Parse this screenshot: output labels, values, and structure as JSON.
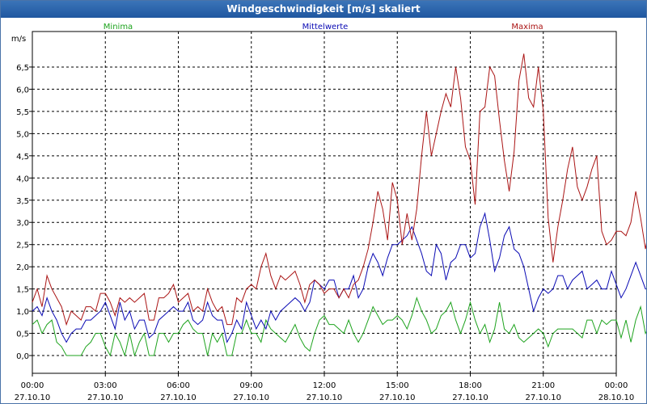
{
  "window": {
    "title": "Windgeschwindigkeit [m/s] skaliert"
  },
  "colors": {
    "minima": "#1ea31e",
    "mittelwerte": "#0a0ab4",
    "maxima": "#aa1414",
    "title_bar": "#1f57a0"
  },
  "chart_data": {
    "type": "line",
    "title": "Windgeschwindigkeit [m/s] skaliert",
    "ylabel": "m/s",
    "xlabel": "",
    "ylim": [
      -0.4,
      7.3
    ],
    "yticks": [
      "0,0",
      "0,5",
      "1,0",
      "1,5",
      "2,0",
      "2,5",
      "3,0",
      "3,5",
      "4,0",
      "4,5",
      "5,0",
      "5,5",
      "6,0",
      "6,5"
    ],
    "xlim": [
      "27.10.10 00:00",
      "28.10.10 00:00"
    ],
    "xticks": [
      {
        "time": "00:00",
        "date": "27.10.10"
      },
      {
        "time": "03:00",
        "date": "27.10.10"
      },
      {
        "time": "06:00",
        "date": "27.10.10"
      },
      {
        "time": "09:00",
        "date": "27.10.10"
      },
      {
        "time": "12:00",
        "date": "27.10.10"
      },
      {
        "time": "15:00",
        "date": "27.10.10"
      },
      {
        "time": "18:00",
        "date": "27.10.10"
      },
      {
        "time": "21:00",
        "date": "27.10.10"
      },
      {
        "time": "00:00",
        "date": "28.10.10"
      }
    ],
    "grid": true,
    "legend_position": "top",
    "series": [
      {
        "name": "Minima",
        "color": "#1ea31e",
        "x_step_hours": 0.2,
        "x_start": "27.10.10 00:00",
        "values": [
          0.7,
          0.8,
          0.5,
          0.7,
          0.8,
          0.3,
          0.2,
          0,
          0,
          0,
          0,
          0.2,
          0.3,
          0.5,
          0.5,
          0.2,
          0,
          0.5,
          0.3,
          0,
          0.5,
          0,
          0.3,
          0.5,
          0,
          0,
          0.5,
          0.5,
          0.3,
          0.5,
          0.5,
          0.7,
          0.8,
          0.6,
          0.5,
          0.5,
          0,
          0.5,
          0.3,
          0.5,
          0,
          0,
          0.5,
          0.5,
          0.8,
          0.5,
          0.5,
          0.3,
          0.8,
          0.6,
          0.5,
          0.4,
          0.3,
          0.5,
          0.7,
          0.4,
          0.2,
          0.1,
          0.5,
          0.8,
          0.9,
          0.7,
          0.7,
          0.6,
          0.5,
          0.8,
          0.5,
          0.3,
          0.5,
          0.8,
          1.1,
          0.9,
          0.7,
          0.8,
          0.8,
          0.9,
          0.8,
          0.6,
          0.9,
          1.3,
          1.0,
          0.8,
          0.5,
          0.6,
          0.9,
          1.0,
          1.2,
          0.8,
          0.5,
          0.8,
          1.2,
          0.8,
          0.5,
          0.7,
          0.3,
          0.6,
          1.2,
          0.6,
          0.5,
          0.7,
          0.4,
          0.3,
          0.4,
          0.5,
          0.6,
          0.5,
          0.2,
          0.5,
          0.6,
          0.6,
          0.6,
          0.6,
          0.5,
          0.4,
          0.8,
          0.8,
          0.5,
          0.8,
          0.7,
          0.8,
          0.8,
          0.4,
          0.8,
          0.3,
          0.8,
          1.1,
          0.5,
          0.7,
          0.6,
          0.6,
          0.6,
          0.5,
          0.5,
          0.5,
          0.5,
          0.8,
          0.9,
          0.6,
          0.5,
          0.1,
          0,
          0.5,
          0.6,
          0.9,
          0.9,
          0.3,
          0.8,
          0.8,
          0.5,
          0.6,
          0.5,
          0.5,
          0.5,
          0.5,
          0.6,
          0.5,
          0.4,
          0.6,
          1.1,
          1.0,
          0.9,
          0.5,
          0.6,
          0.4,
          0.5,
          0.5,
          0.5,
          0.5,
          0.5,
          0.4,
          0.1,
          0.3,
          0.5,
          0.7,
          0.6,
          0.6,
          0.5,
          0.3,
          0.2,
          0,
          0.4,
          0.7
        ]
      },
      {
        "name": "Mittelwerte",
        "color": "#0a0ab4",
        "x_step_hours": 0.2,
        "x_start": "27.10.10 00:00",
        "values": [
          1.0,
          1.1,
          0.9,
          1.3,
          1.0,
          0.8,
          0.5,
          0.3,
          0.5,
          0.6,
          0.6,
          0.8,
          0.8,
          0.9,
          1.0,
          1.2,
          0.9,
          0.6,
          1.2,
          0.8,
          1.0,
          0.6,
          0.8,
          0.8,
          0.4,
          0.5,
          0.8,
          0.9,
          1.0,
          1.1,
          1.0,
          1.0,
          1.2,
          0.8,
          0.7,
          0.8,
          1.2,
          0.9,
          0.8,
          0.8,
          0.3,
          0.5,
          0.8,
          0.6,
          1.2,
          0.9,
          0.6,
          0.8,
          0.6,
          1.0,
          0.8,
          1.0,
          1.1,
          1.2,
          1.3,
          1.2,
          1.0,
          1.2,
          1.7,
          1.6,
          1.5,
          1.7,
          1.7,
          1.3,
          1.5,
          1.5,
          1.8,
          1.3,
          1.5,
          2.0,
          2.3,
          2.1,
          1.8,
          2.2,
          2.5,
          2.5,
          2.6,
          2.7,
          2.9,
          2.6,
          2.3,
          1.9,
          1.8,
          2.5,
          2.3,
          1.7,
          2.1,
          2.2,
          2.5,
          2.5,
          2.2,
          2.3,
          2.9,
          3.2,
          2.6,
          1.9,
          2.2,
          2.7,
          2.9,
          2.4,
          2.3,
          2.0,
          1.5,
          1.0,
          1.3,
          1.5,
          1.4,
          1.5,
          1.8,
          1.8,
          1.5,
          1.7,
          1.8,
          1.9,
          1.5,
          1.6,
          1.7,
          1.5,
          1.5,
          1.9,
          1.6,
          1.3,
          1.5,
          1.8,
          2.1,
          1.8,
          1.5,
          1.5,
          1.5,
          1.9,
          2.0,
          2.4,
          2.0,
          1.5,
          1.3,
          1.1,
          1.0,
          1.5,
          1.7,
          1.7,
          1.5,
          1.5,
          1.9,
          2.3,
          1.8,
          1.5,
          1.5,
          1.1,
          1.2,
          1.0,
          1.1,
          1.2,
          1.2,
          1.0,
          1.2,
          1.1,
          1.3,
          1.8,
          1.5,
          1.7,
          1.2,
          1.2,
          1.3,
          1.6,
          1.8,
          1.9,
          1.8,
          1.2,
          0.8,
          1.1,
          1.1,
          1.2,
          1.3,
          1.2,
          1.3,
          1.5,
          1.0,
          1.1,
          1.2,
          1.3,
          1.3
        ]
      },
      {
        "name": "Maxima",
        "color": "#aa1414",
        "x_step_hours": 0.2,
        "x_start": "27.10.10 00:00",
        "values": [
          1.2,
          1.5,
          1.1,
          1.8,
          1.5,
          1.3,
          1.1,
          0.7,
          1.0,
          0.9,
          0.8,
          1.1,
          1.1,
          1.0,
          1.4,
          1.4,
          1.2,
          0.9,
          1.3,
          1.2,
          1.3,
          1.2,
          1.3,
          1.4,
          0.8,
          0.8,
          1.3,
          1.3,
          1.4,
          1.6,
          1.2,
          1.3,
          1.4,
          1.0,
          1.1,
          1.0,
          1.5,
          1.2,
          1.0,
          1.1,
          0.7,
          0.7,
          1.3,
          1.2,
          1.5,
          1.6,
          1.5,
          2.0,
          2.3,
          1.8,
          1.5,
          1.8,
          1.7,
          1.8,
          1.9,
          1.6,
          1.2,
          1.6,
          1.7,
          1.6,
          1.4,
          1.5,
          1.5,
          1.3,
          1.5,
          1.3,
          1.6,
          1.7,
          2.0,
          2.4,
          3.0,
          3.7,
          3.3,
          2.6,
          3.9,
          3.5,
          2.5,
          3.2,
          2.6,
          3.3,
          4.5,
          5.5,
          4.5,
          5.0,
          5.5,
          5.9,
          5.6,
          6.5,
          5.8,
          4.7,
          4.4,
          3.4,
          5.5,
          5.6,
          6.5,
          6.3,
          5.3,
          4.4,
          3.7,
          4.6,
          6.2,
          6.8,
          5.8,
          5.6,
          6.5,
          5.5,
          3.1,
          2.1,
          2.9,
          3.5,
          4.2,
          4.7,
          3.8,
          3.5,
          3.8,
          4.2,
          4.5,
          2.8,
          2.5,
          2.6,
          2.8,
          2.8,
          2.7,
          3.0,
          3.7,
          3.1,
          2.4,
          3.0,
          4.7,
          4.2,
          3.3,
          2.2,
          2.1,
          3.0,
          4.1,
          4.9,
          3.8,
          3.1,
          4.3,
          5.6,
          6.8,
          4.8,
          4.6,
          5.5,
          5.2,
          3.8,
          2.0,
          2.1,
          2.0,
          3.9,
          4.0,
          2.8,
          2.6,
          3.0,
          3.1,
          5.4,
          4.3,
          2.9,
          2.5,
          2.1,
          2.6,
          3.1,
          3.9,
          3.4,
          3.0,
          2.5,
          2.5,
          2.0,
          2.0,
          2.2,
          2.3,
          2.6,
          2.5,
          1.7,
          1.8,
          1.8,
          2.0,
          2.1,
          2.9,
          2.9,
          2.1,
          4.7
        ]
      }
    ]
  }
}
